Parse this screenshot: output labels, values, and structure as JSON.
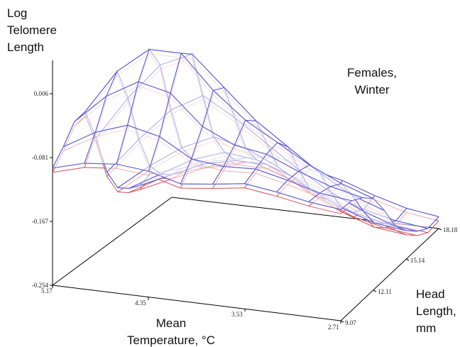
{
  "chart_data": {
    "type": "surface",
    "annotation": [
      "Females,",
      "Winter"
    ],
    "zlabel": [
      "Log",
      "Telomere",
      "Length"
    ],
    "xlabel": [
      "Mean",
      "Temperature, °C"
    ],
    "ylabel": [
      "Head",
      "Length,",
      "mm"
    ],
    "x_ticks": [
      "5.17",
      "4.35",
      "3.53",
      "2.71"
    ],
    "y_ticks": [
      "9.07",
      "12.11",
      "15.14",
      "18.18"
    ],
    "z_ticks": [
      "-0.254",
      "-0.167",
      "-0.081",
      "0.006"
    ],
    "xlim": [
      5.17,
      2.71
    ],
    "ylim": [
      9.07,
      18.18
    ],
    "zlim": [
      -0.254,
      0.006
    ],
    "x": [
      5.17,
      4.897,
      4.623,
      4.35,
      4.077,
      3.803,
      3.53,
      3.257,
      2.983,
      2.71
    ],
    "y": [
      9.07,
      10.08,
      11.1,
      12.11,
      13.12,
      14.13,
      15.14,
      16.16,
      17.17,
      18.18
    ],
    "z_grid": [
      [
        -0.095,
        -0.083,
        -0.079,
        -0.083,
        -0.095,
        -0.09,
        -0.084,
        -0.09,
        -0.098,
        -0.103
      ],
      [
        -0.08,
        -0.055,
        -0.04,
        -0.05,
        -0.075,
        -0.08,
        -0.078,
        -0.088,
        -0.1,
        -0.105
      ],
      [
        -0.06,
        -0.02,
        0.005,
        -0.005,
        -0.045,
        -0.065,
        -0.072,
        -0.09,
        -0.105,
        -0.115
      ],
      [
        -0.06,
        0.0,
        0.035,
        0.035,
        -0.01,
        -0.045,
        -0.07,
        -0.095,
        -0.115,
        -0.13
      ],
      [
        -0.11,
        -0.05,
        0.0,
        0.02,
        -0.02,
        -0.06,
        -0.09,
        -0.12,
        -0.145,
        -0.16
      ],
      [
        -0.17,
        -0.12,
        -0.075,
        -0.05,
        -0.075,
        -0.105,
        -0.135,
        -0.16,
        -0.18,
        -0.195
      ],
      [
        -0.205,
        -0.17,
        -0.14,
        -0.12,
        -0.13,
        -0.15,
        -0.175,
        -0.195,
        -0.21,
        -0.215
      ],
      [
        -0.22,
        -0.195,
        -0.17,
        -0.155,
        -0.16,
        -0.175,
        -0.195,
        -0.215,
        -0.225,
        -0.23
      ],
      [
        -0.23,
        -0.21,
        -0.19,
        -0.18,
        -0.18,
        -0.195,
        -0.21,
        -0.225,
        -0.235,
        -0.24
      ],
      [
        -0.228,
        -0.215,
        -0.2,
        -0.19,
        -0.185,
        -0.195,
        -0.205,
        -0.22,
        -0.232,
        -0.238
      ]
    ],
    "colors": {
      "top_mesh": "#5a5ad2",
      "under_mesh": "#d2505a"
    },
    "grid": false
  }
}
